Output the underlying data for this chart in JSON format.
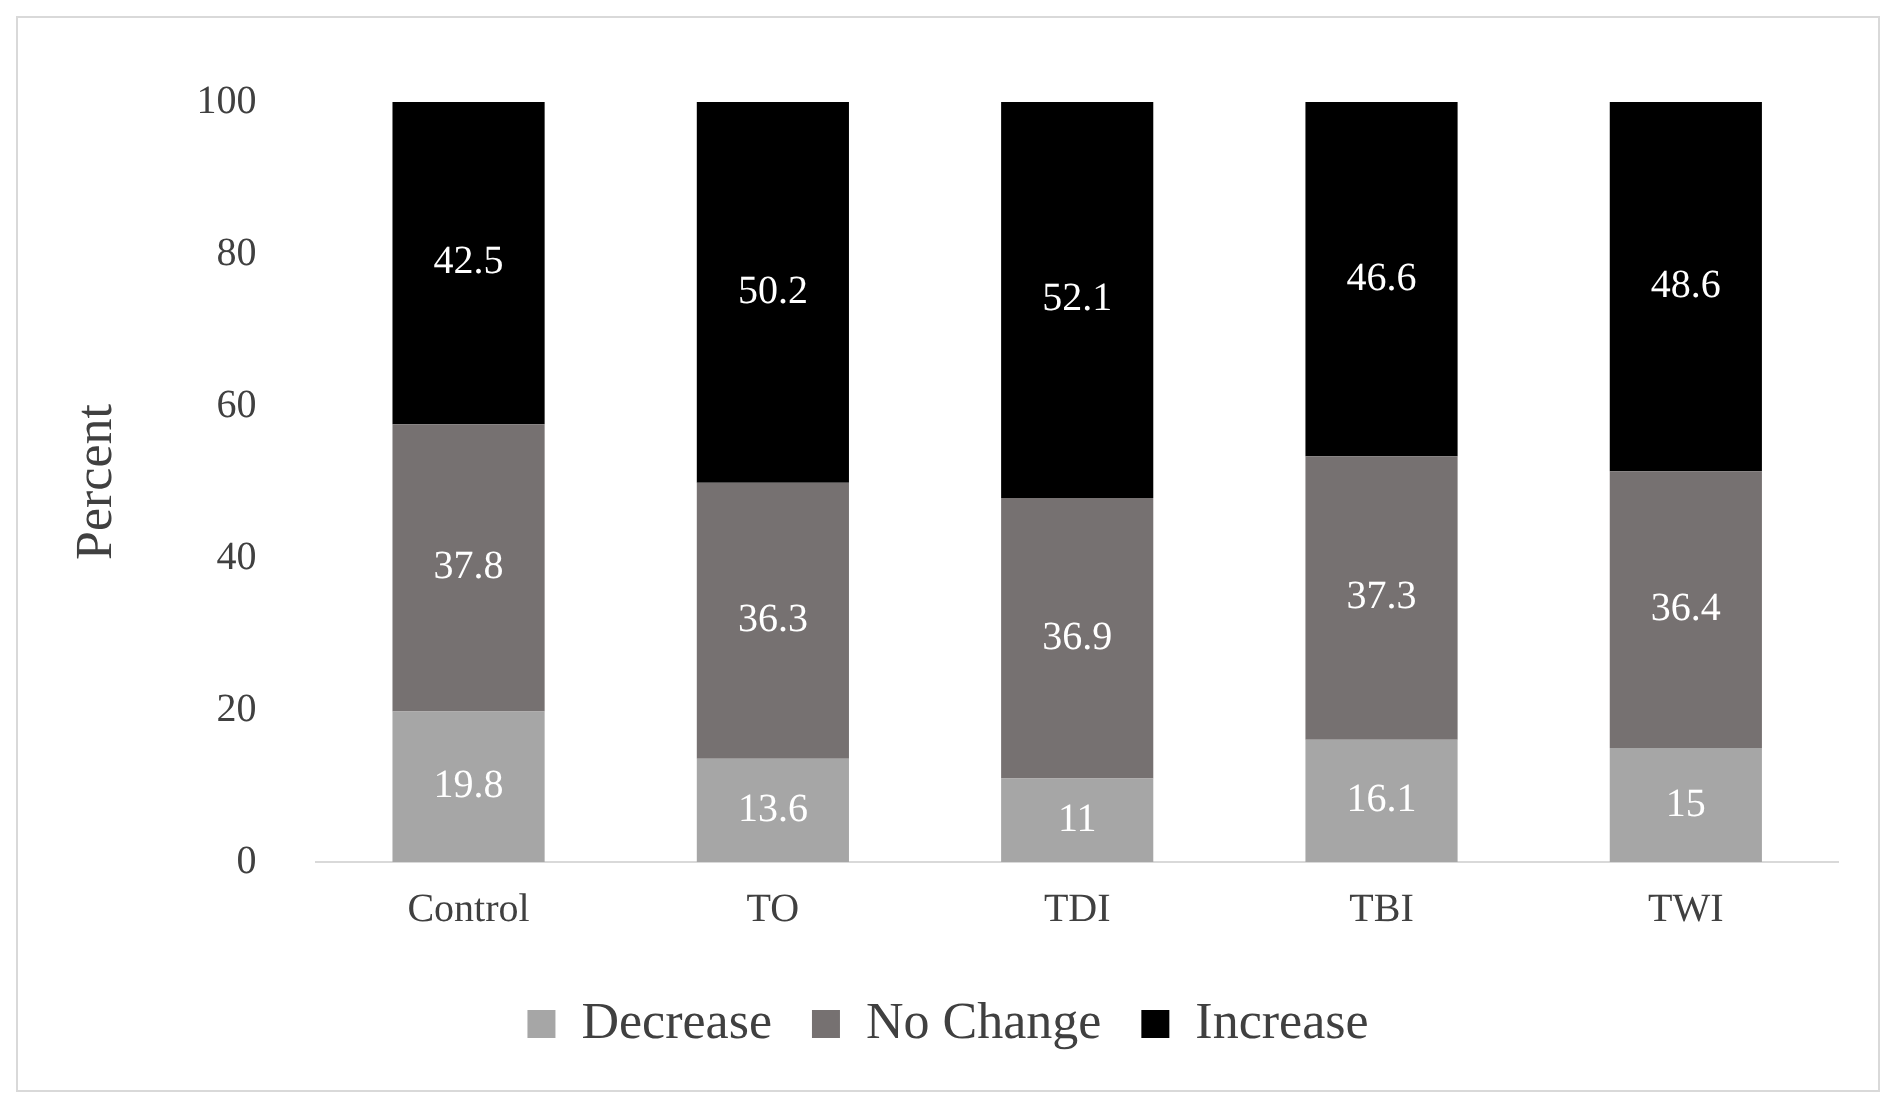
{
  "chart_data": {
    "type": "bar",
    "stacked": true,
    "ylabel": "Percent",
    "categories": [
      "Control",
      "TO",
      "TDI",
      "TBI",
      "TWI"
    ],
    "series": [
      {
        "name": "Decrease",
        "color": "#a6a6a6",
        "values": [
          19.8,
          13.6,
          11,
          16.1,
          15
        ]
      },
      {
        "name": "No Change",
        "color": "#767171",
        "values": [
          37.8,
          36.3,
          36.9,
          37.3,
          36.4
        ]
      },
      {
        "name": "Increase",
        "color": "#000000",
        "values": [
          42.5,
          50.2,
          52.1,
          46.6,
          48.6
        ]
      }
    ],
    "ylim": [
      0,
      100
    ],
    "yticks": [
      0,
      20,
      40,
      60,
      80,
      100
    ],
    "grid": false,
    "legend": "bottom",
    "data_labels": true
  }
}
